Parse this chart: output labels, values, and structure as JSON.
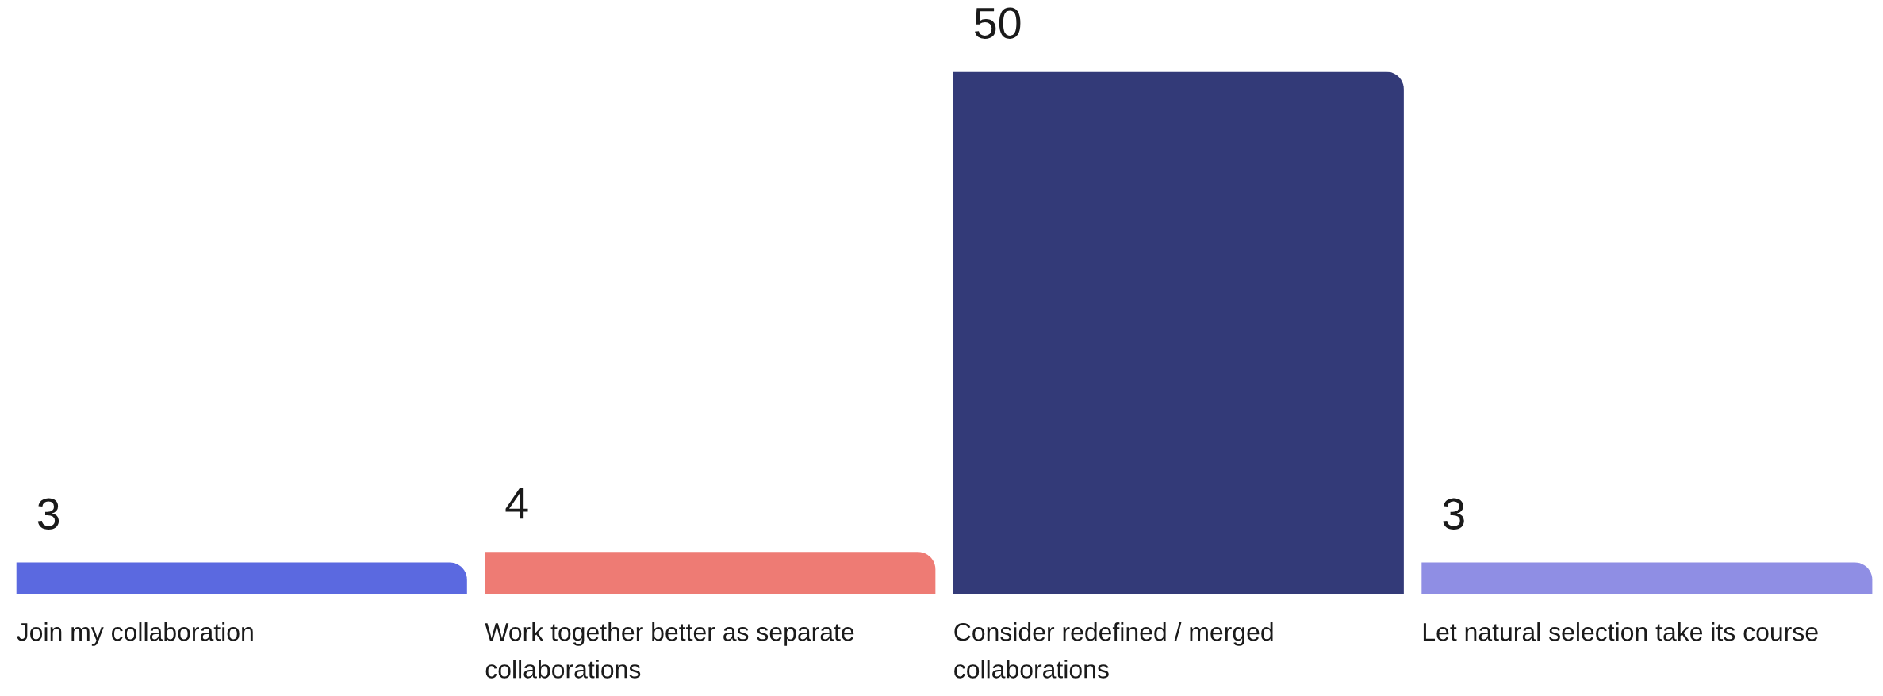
{
  "chart_data": {
    "type": "bar",
    "categories": [
      "Join my collaboration",
      "Work together better as separate collaborations",
      "Consider redefined / merged collaborations",
      "Let natural selection take its course"
    ],
    "values": [
      3,
      4,
      50,
      3
    ],
    "colors": [
      "#5b69e0",
      "#ee7b74",
      "#333a78",
      "#8f8ee4"
    ],
    "data_labels": true
  }
}
